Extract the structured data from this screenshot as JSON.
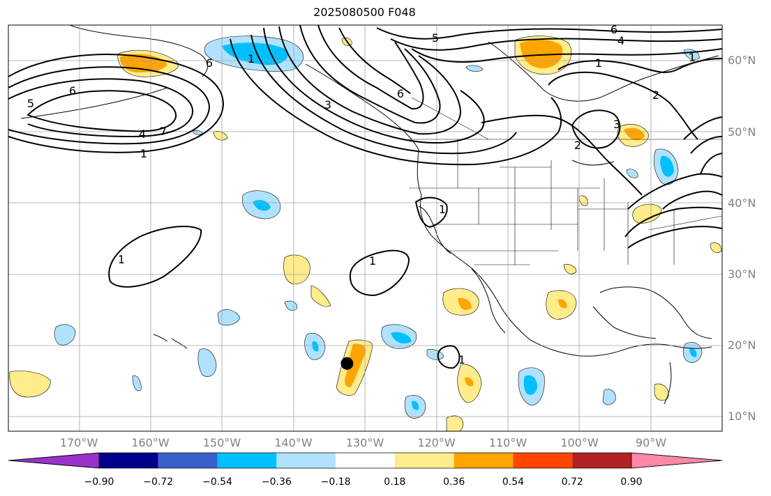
{
  "title": "2025080500 F048",
  "lat_labels": [
    {
      "deg": 60,
      "text": "60°N"
    },
    {
      "deg": 50,
      "text": "50°N"
    },
    {
      "deg": 40,
      "text": "40°N"
    },
    {
      "deg": 30,
      "text": "30°N"
    },
    {
      "deg": 20,
      "text": "20°N"
    },
    {
      "deg": 10,
      "text": "10°N"
    }
  ],
  "lon_labels": [
    {
      "deg": -170,
      "text": "170°W"
    },
    {
      "deg": -160,
      "text": "160°W"
    },
    {
      "deg": -150,
      "text": "150°W"
    },
    {
      "deg": -140,
      "text": "140°W"
    },
    {
      "deg": -130,
      "text": "130°W"
    },
    {
      "deg": -120,
      "text": "120°W"
    },
    {
      "deg": -110,
      "text": "110°W"
    },
    {
      "deg": -100,
      "text": "100°W"
    },
    {
      "deg": -90,
      "text": "90°W"
    }
  ],
  "colorbar": {
    "colors": [
      "#9933cc",
      "#00008b",
      "#3a5fcd",
      "#00bfff",
      "#b0e2ff",
      "#ffffff",
      "#ffec8b",
      "#ffa500",
      "#ff4500",
      "#b22222",
      "#ff88aa"
    ],
    "ticks": [
      "−0.90",
      "−0.72",
      "−0.54",
      "−0.36",
      "−0.18",
      "0.18",
      "0.36",
      "0.54",
      "0.72",
      "0.90"
    ]
  },
  "contour_labels": [
    "5",
    "6",
    "6",
    "4",
    "7",
    "1",
    "1",
    "3",
    "6",
    "5",
    "6",
    "4",
    "1",
    "1",
    "2",
    "3",
    "2",
    "1",
    "1",
    "1",
    "1"
  ],
  "marker": {
    "lon": -132.5,
    "lat": 17.5
  }
}
